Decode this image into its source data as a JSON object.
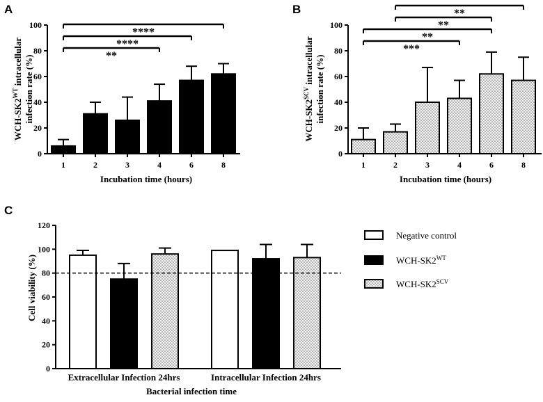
{
  "panels": {
    "A": {
      "letter": "A"
    },
    "B": {
      "letter": "B"
    },
    "C": {
      "letter": "C"
    }
  },
  "colors": {
    "solid": "#000000",
    "open": "#ffffff",
    "stroke": "#000000"
  },
  "chart_data": [
    {
      "panel": "A",
      "type": "bar",
      "fill": "solid",
      "categories": [
        "1",
        "2",
        "3",
        "4",
        "6",
        "8"
      ],
      "values": [
        6,
        31,
        26,
        41,
        57,
        62
      ],
      "errors": [
        5,
        9,
        18,
        13,
        11,
        8
      ],
      "ylim": [
        0,
        100
      ],
      "yticks": [
        "0",
        "20",
        "40",
        "60",
        "80",
        "100"
      ],
      "xlabel": "Incubation time (hours)",
      "ylabel_parts": {
        "main": "WCH-SK2",
        "sup": "WT",
        "rest": " intracellular",
        "line2": "infection rate (%)"
      },
      "significance": [
        {
          "from": 0,
          "to": 5,
          "label": "****"
        },
        {
          "from": 0,
          "to": 4,
          "label": "****"
        },
        {
          "from": 0,
          "to": 3,
          "label": "**"
        }
      ]
    },
    {
      "panel": "B",
      "type": "bar",
      "fill": "pattern",
      "categories": [
        "1",
        "2",
        "3",
        "4",
        "6",
        "8"
      ],
      "values": [
        11,
        17,
        40,
        43,
        62,
        57
      ],
      "errors": [
        9,
        6,
        27,
        14,
        17,
        18
      ],
      "ylim": [
        0,
        100
      ],
      "yticks": [
        "0",
        "20",
        "40",
        "60",
        "80",
        "100"
      ],
      "xlabel": "Incubation time (hours)",
      "ylabel_parts": {
        "main": "WCH-SK2",
        "sup": "SCV",
        "rest": " intracellular",
        "line2": "infection rate (%)"
      },
      "significance": [
        {
          "from": 1,
          "to": 5,
          "label": "**"
        },
        {
          "from": 1,
          "to": 4,
          "label": "**"
        },
        {
          "from": 0,
          "to": 4,
          "label": "**"
        },
        {
          "from": 0,
          "to": 3,
          "label": "***"
        }
      ]
    },
    {
      "panel": "C",
      "type": "bar",
      "groups": [
        "Extracellular Infection 24hrs",
        "Intracellular Infection 24hrs"
      ],
      "series": [
        {
          "name": "Negative control",
          "fill": "open",
          "values": [
            95,
            99
          ],
          "errors": [
            4,
            0
          ]
        },
        {
          "name": "WCH-SK2",
          "sup": "WT",
          "fill": "solid",
          "values": [
            75,
            92
          ],
          "errors": [
            13,
            12
          ]
        },
        {
          "name": "WCH-SK2",
          "sup": "SCV",
          "fill": "pattern",
          "values": [
            96,
            93
          ],
          "errors": [
            5,
            11
          ]
        }
      ],
      "ylim": [
        0,
        120
      ],
      "yticks": [
        "0",
        "20",
        "40",
        "60",
        "80",
        "100",
        "120"
      ],
      "reference_line": 80,
      "xlabel": "Bacterial infection time",
      "ylabel": "Cell viability (%)"
    }
  ]
}
